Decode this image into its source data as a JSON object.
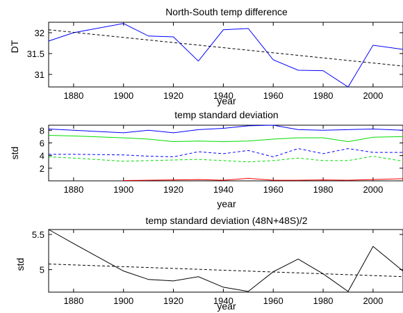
{
  "chart_data": [
    {
      "type": "line",
      "title": "North-South temp difference",
      "xlabel": "year",
      "ylabel": "DT",
      "xlim": [
        1870,
        2012
      ],
      "ylim": [
        30.7,
        32.25
      ],
      "xticks": [
        1880,
        1900,
        1920,
        1940,
        1960,
        1980,
        2000
      ],
      "yticks": [
        31,
        31.5,
        32
      ],
      "ytick_labels": [
        "31",
        "31.5",
        "32"
      ],
      "grid": false,
      "series": [
        {
          "style": "solid",
          "color": "#0000ff",
          "x": [
            1870,
            1880,
            1900,
            1910,
            1920,
            1930,
            1940,
            1950,
            1960,
            1970,
            1980,
            1990,
            2000,
            2012
          ],
          "y": [
            31.8,
            32.0,
            32.22,
            31.92,
            31.9,
            31.32,
            32.07,
            32.1,
            31.35,
            31.1,
            31.09,
            30.7,
            31.7,
            31.6
          ]
        },
        {
          "style": "dashed",
          "color": "#000000",
          "x": [
            1870,
            2012
          ],
          "y": [
            32.07,
            31.2
          ]
        }
      ]
    },
    {
      "type": "line",
      "title": "temp standard deviation",
      "xlabel": "year",
      "ylabel": "std",
      "xlim": [
        1870,
        2012
      ],
      "ylim": [
        0,
        8.8
      ],
      "xticks": [
        1880,
        1900,
        1920,
        1940,
        1960,
        1980,
        2000
      ],
      "yticks": [
        2,
        4,
        6,
        8
      ],
      "ytick_labels": [
        "2",
        "4",
        "6",
        "8"
      ],
      "grid": false,
      "series": [
        {
          "style": "solid",
          "color": "#0000ff",
          "x": [
            1870,
            1880,
            1900,
            1910,
            1920,
            1930,
            1940,
            1950,
            1960,
            1970,
            1980,
            1990,
            2000,
            2012
          ],
          "y": [
            8.2,
            8.0,
            7.6,
            8.0,
            7.6,
            8.1,
            8.3,
            8.7,
            8.8,
            8.1,
            8.0,
            8.1,
            8.2,
            8.0
          ]
        },
        {
          "style": "solid",
          "color": "#00dd00",
          "x": [
            1870,
            1880,
            1900,
            1910,
            1920,
            1930,
            1940,
            1950,
            1960,
            1970,
            1980,
            1990,
            2000,
            2012
          ],
          "y": [
            7.2,
            7.1,
            6.8,
            6.6,
            6.2,
            6.3,
            6.2,
            6.3,
            6.6,
            6.8,
            6.8,
            6.2,
            6.9,
            7.0
          ]
        },
        {
          "style": "dashed",
          "color": "#0000ff",
          "x": [
            1870,
            1880,
            1900,
            1910,
            1920,
            1930,
            1940,
            1950,
            1960,
            1970,
            1980,
            1990,
            2000,
            2012
          ],
          "y": [
            4.2,
            4.2,
            4.1,
            3.9,
            3.8,
            4.6,
            4.3,
            4.8,
            3.8,
            5.1,
            4.3,
            5.1,
            4.5,
            4.5
          ]
        },
        {
          "style": "dashed",
          "color": "#00dd00",
          "x": [
            1870,
            1880,
            1900,
            1910,
            1920,
            1930,
            1940,
            1950,
            1960,
            1970,
            1980,
            1990,
            2000,
            2012
          ],
          "y": [
            3.8,
            3.6,
            3.1,
            3.2,
            3.3,
            3.4,
            3.2,
            3.0,
            3.2,
            3.6,
            3.2,
            3.2,
            3.9,
            3.1
          ]
        },
        {
          "style": "solid",
          "color": "#ff0000",
          "x": [
            1900,
            1910,
            1920,
            1930,
            1940,
            1950,
            1960,
            1970,
            1980,
            1990,
            2000,
            2012
          ],
          "y": [
            0.05,
            0.1,
            0.15,
            0.2,
            0.1,
            0.4,
            0.1,
            0.1,
            0.15,
            0.1,
            0.2,
            0.35
          ]
        }
      ]
    },
    {
      "type": "line",
      "title": "temp standard deviation (48N+48S)/2",
      "xlabel": "year",
      "ylabel": "std",
      "xlim": [
        1870,
        2012
      ],
      "ylim": [
        4.68,
        5.57
      ],
      "xticks": [
        1880,
        1900,
        1920,
        1940,
        1960,
        1980,
        2000
      ],
      "yticks": [
        5,
        5.5
      ],
      "ytick_labels": [
        "5",
        "5.5"
      ],
      "grid": false,
      "series": [
        {
          "style": "solid",
          "color": "#000000",
          "x": [
            1870,
            1880,
            1900,
            1910,
            1920,
            1930,
            1940,
            1950,
            1960,
            1970,
            1980,
            1990,
            2000,
            2012
          ],
          "y": [
            5.57,
            5.37,
            4.98,
            4.86,
            4.84,
            4.9,
            4.75,
            4.69,
            4.97,
            5.15,
            4.94,
            4.69,
            5.33,
            4.98
          ]
        },
        {
          "style": "dashed",
          "color": "#000000",
          "x": [
            1870,
            2012
          ],
          "y": [
            5.08,
            4.9
          ]
        }
      ]
    }
  ]
}
